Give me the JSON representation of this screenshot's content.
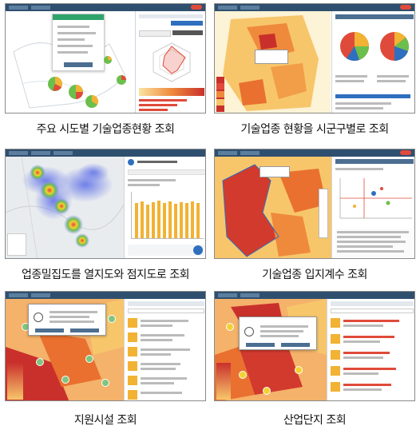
{
  "captions": [
    "주요 시도별 기술업종현황 조회",
    "기술업종 현황을 시군구별로 조회",
    "업종밀집도를 열지도와 점지도로 조회",
    "기술업종 입지계수 조회",
    "지원시설 조회",
    "산업단지 조회"
  ],
  "colors": {
    "header": "#2f4f6f",
    "accent_red": "#e04a3a",
    "choropleth_dark": "#c9302c",
    "choropleth_mid": "#ef8a3c",
    "choropleth_light": "#fbe3a0",
    "bar_yellow": "#f2b233",
    "heat_blue": "#6f7fe8",
    "pie_green": "#6bbf4c"
  },
  "icons": [
    "map-icon",
    "pie-chart-icon",
    "radar-chart-icon",
    "bar-chart-icon",
    "heatmap-icon",
    "marker-icon",
    "close-icon",
    "info-icon"
  ]
}
